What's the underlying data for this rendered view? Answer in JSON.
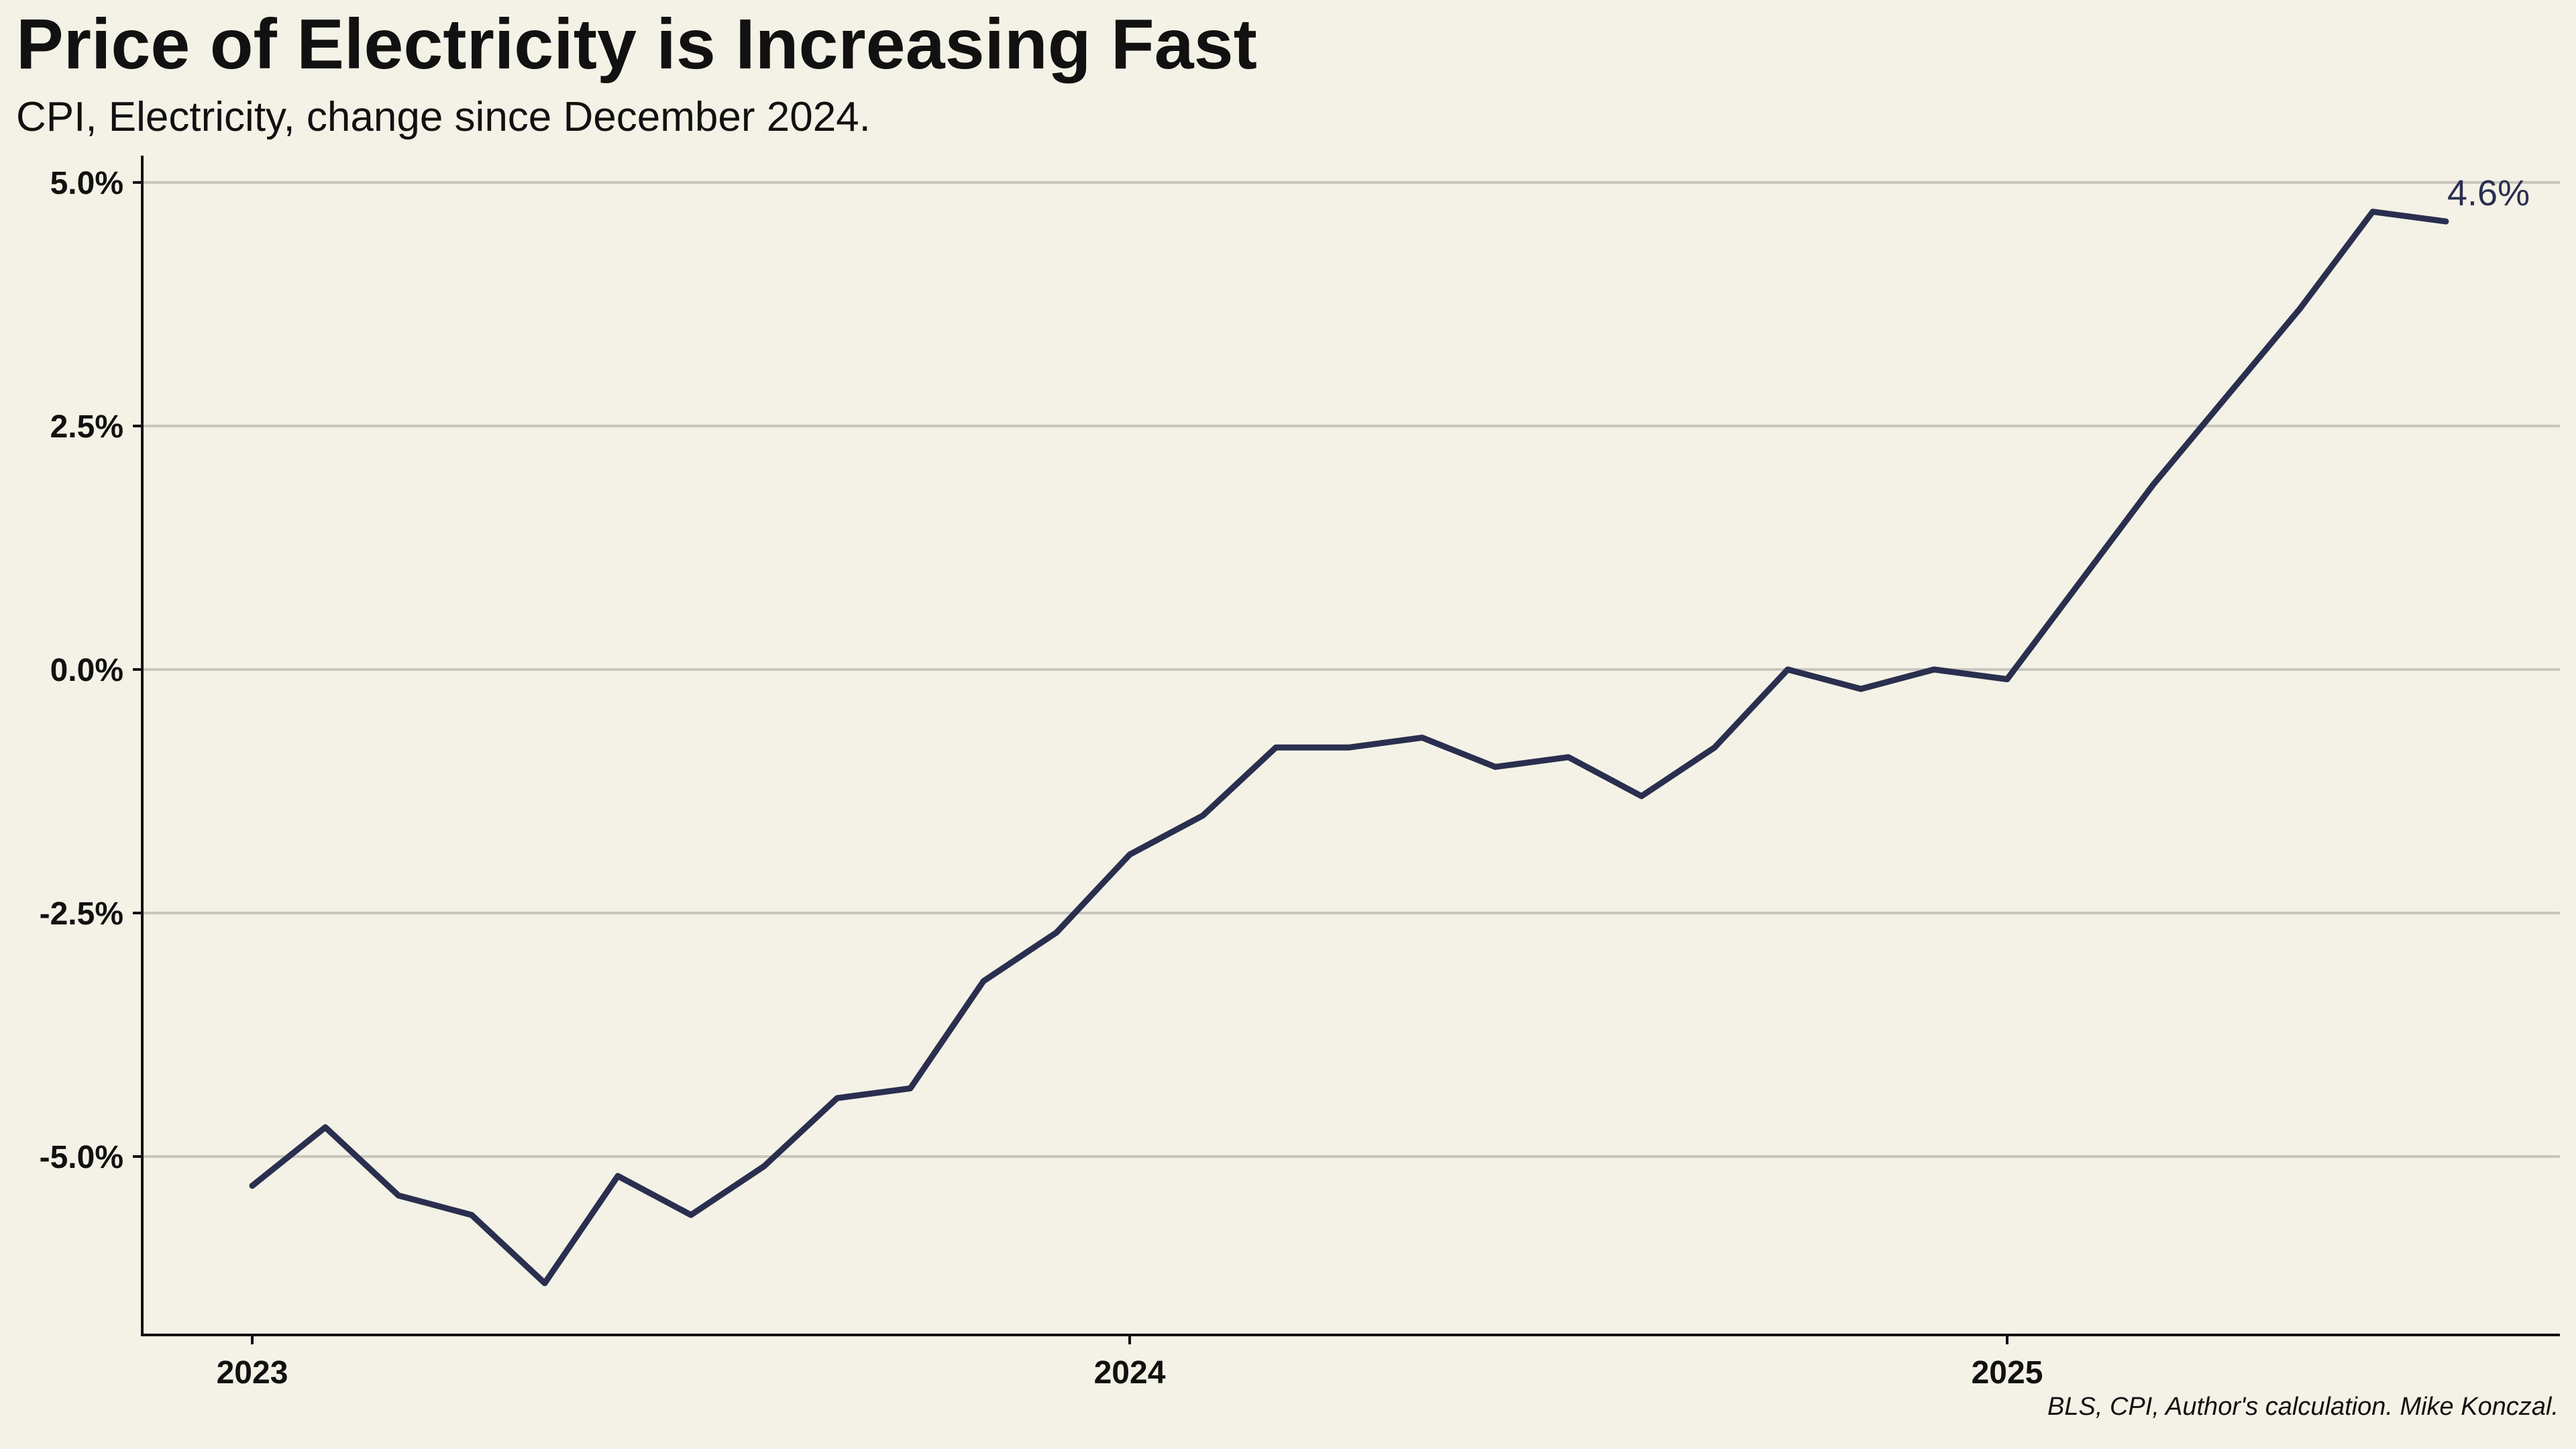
{
  "title": "Price of Electricity is Increasing Fast",
  "subtitle": "CPI, Electricity, change since December 2024.",
  "source": "BLS, CPI, Author's calculation. Mike Konczal.",
  "chart_data": {
    "type": "line",
    "title": "Price of Electricity is Increasing Fast",
    "subtitle": "CPI, Electricity, change since December 2024.",
    "xlabel": "",
    "ylabel": "",
    "x_ticks": [
      "2023",
      "2024",
      "2025"
    ],
    "y_ticks": [
      "5.0%",
      "2.5%",
      "0.0%",
      "-2.5%",
      "-5.0%"
    ],
    "y_tick_values": [
      5.0,
      2.5,
      0.0,
      -2.5,
      -5.0
    ],
    "ylim": [
      -6.8,
      5.3
    ],
    "xlim": [
      "2022-11",
      "2025-10"
    ],
    "grid": "horizontal",
    "line_color": "#2a2f4f",
    "end_label": "4.6%",
    "series": [
      {
        "x": [
          "2023-01",
          "2023-02",
          "2023-03",
          "2023-04",
          "2023-05",
          "2023-06",
          "2023-07",
          "2023-08",
          "2023-09",
          "2023-10",
          "2023-11",
          "2023-12",
          "2024-01",
          "2024-02",
          "2024-03",
          "2024-04",
          "2024-05",
          "2024-06",
          "2024-07",
          "2024-08",
          "2024-09",
          "2024-10",
          "2024-11",
          "2024-12",
          "2025-01",
          "2025-02",
          "2025-03",
          "2025-04",
          "2025-05",
          "2025-06",
          "2025-07"
        ],
        "values": [
          -5.3,
          -4.7,
          -5.4,
          -5.6,
          -6.3,
          -5.2,
          -5.6,
          -5.1,
          -4.4,
          -4.3,
          -3.2,
          -2.7,
          -1.9,
          -1.5,
          -0.8,
          -0.8,
          -0.7,
          -1.0,
          -0.9,
          -1.3,
          -0.8,
          0.0,
          -0.2,
          0.0,
          -0.1,
          0.9,
          1.9,
          2.8,
          3.7,
          4.7,
          4.6
        ]
      }
    ]
  }
}
